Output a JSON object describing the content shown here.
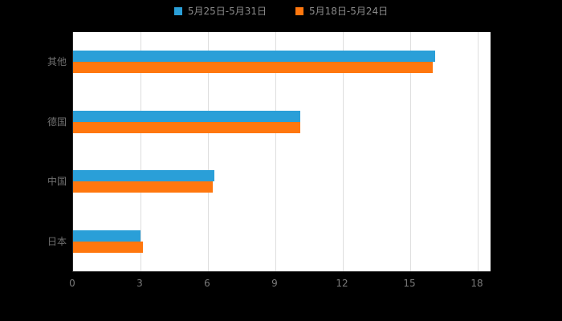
{
  "chart_data": {
    "type": "bar",
    "orientation": "horizontal",
    "title": "",
    "categories": [
      "其他",
      "德国",
      "中国",
      "日本"
    ],
    "series": [
      {
        "name": "5月25日-5月31日",
        "color": "#2A9FD8",
        "values": [
          16.1,
          10.1,
          6.3,
          3.0
        ]
      },
      {
        "name": "5月18日-5月24日",
        "color": "#FF770E",
        "values": [
          16.0,
          10.1,
          6.2,
          3.1
        ]
      }
    ],
    "xlim": [
      0,
      18
    ],
    "x_ticks": [
      0,
      3,
      6,
      9,
      12,
      15,
      18
    ],
    "grid": true,
    "legend_position": "top",
    "colors": {
      "background": "#000000",
      "plot_background": "#ffffff",
      "gridline": "#dedede",
      "axis": "#262626",
      "text": "#6f6f6f"
    }
  }
}
